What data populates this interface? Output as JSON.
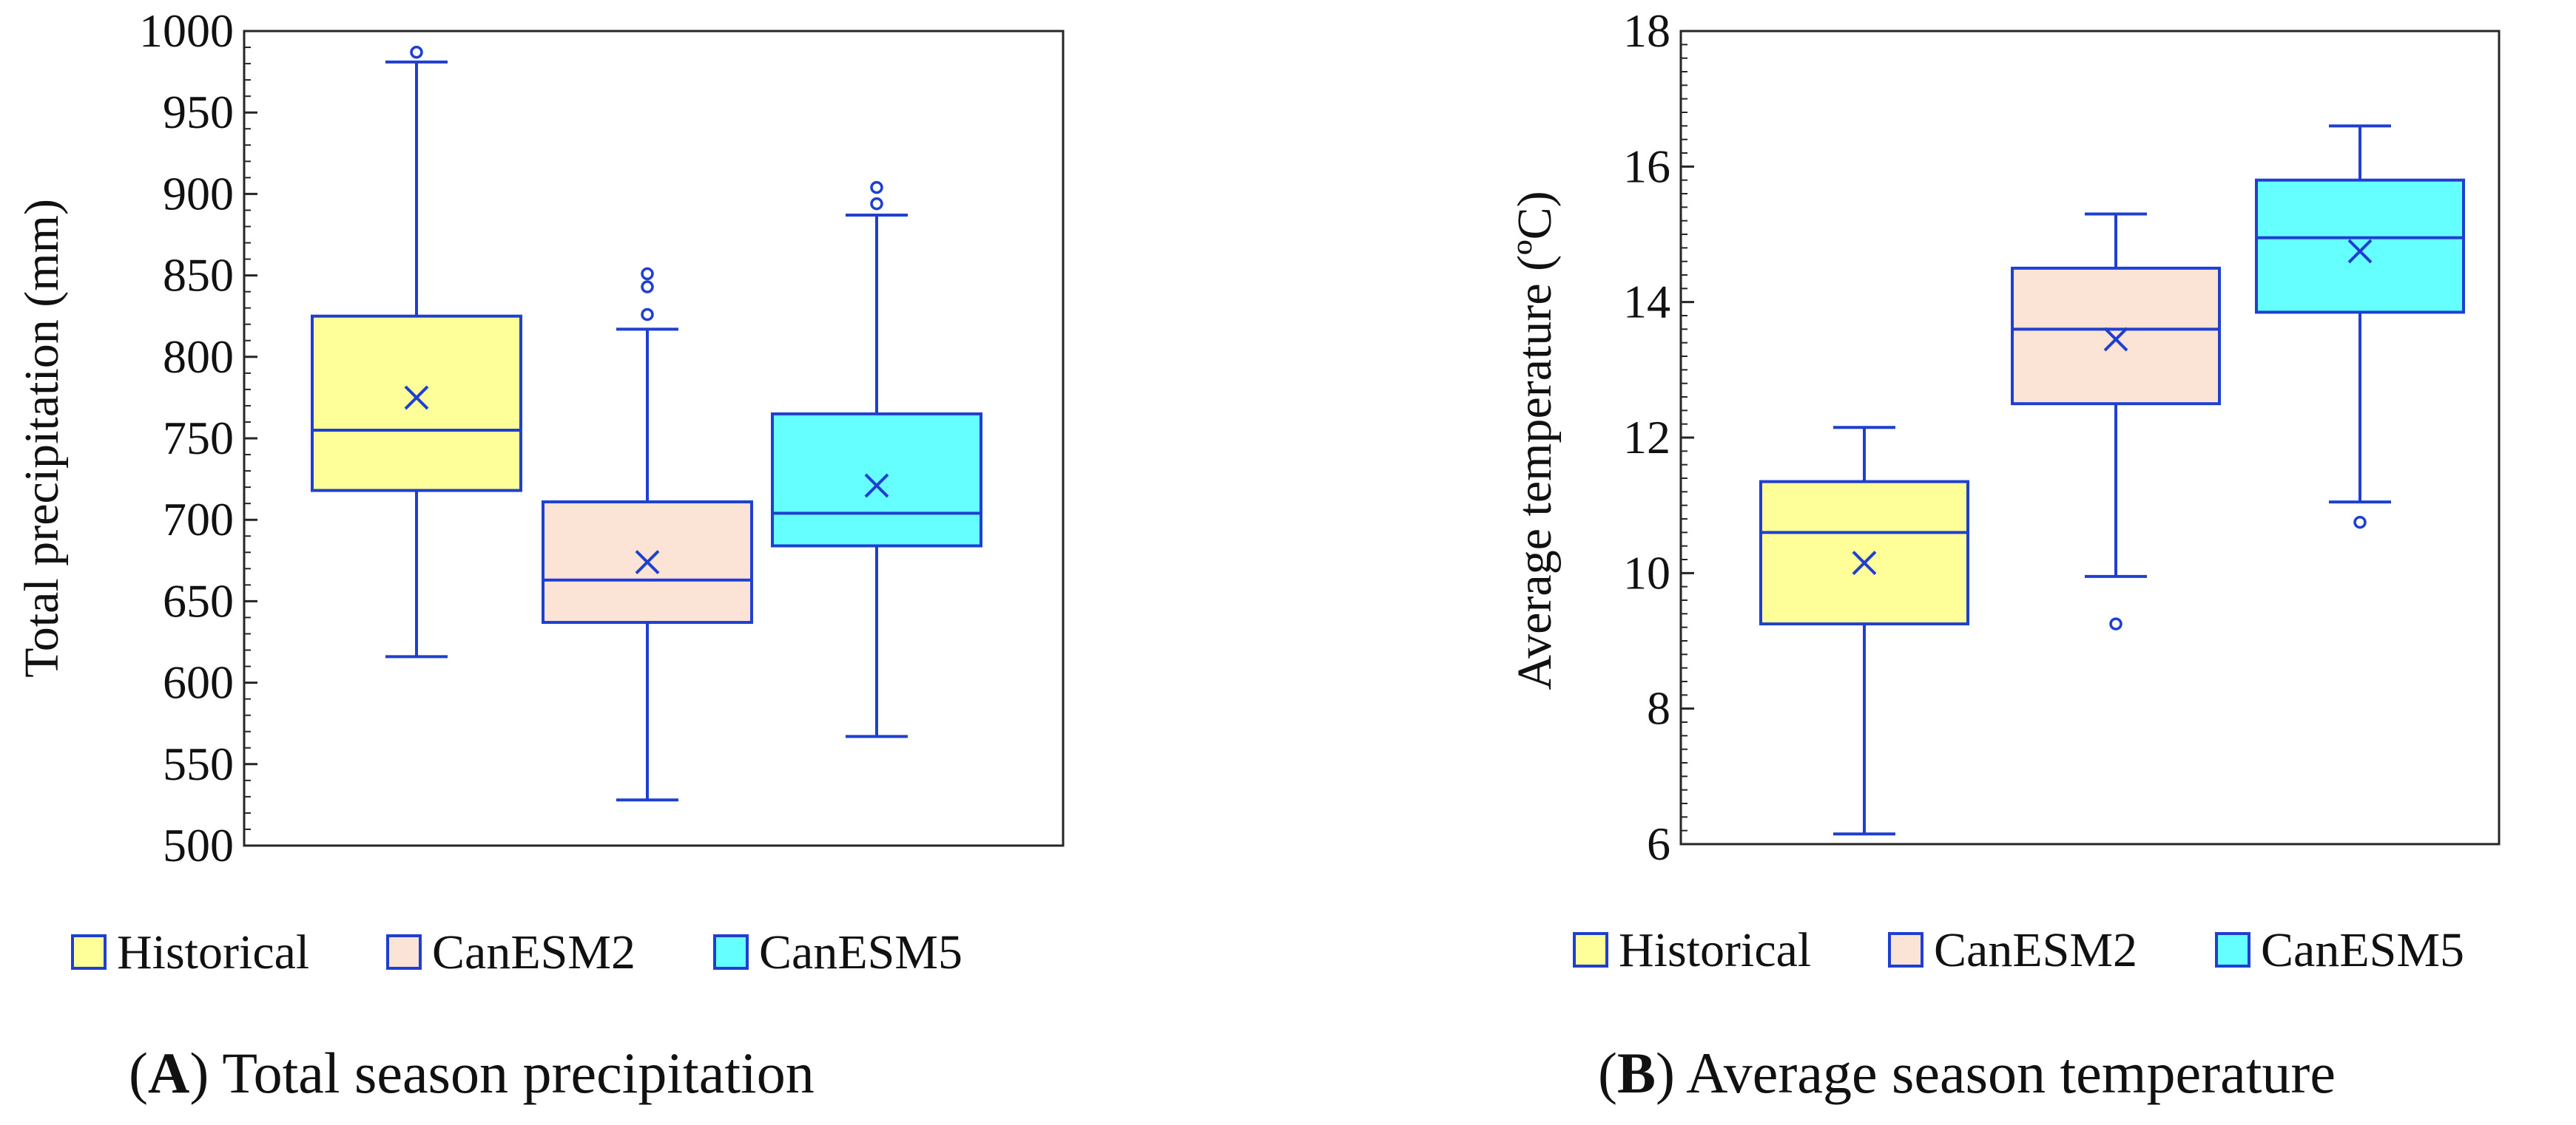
{
  "colors": {
    "box_stroke": "#1f3fd1",
    "frame": "#262626",
    "historical": "#ffff99",
    "canesm2": "#fbe3d6",
    "canesm5": "#66ffff"
  },
  "chart_data": [
    {
      "type": "box",
      "caption": {
        "letter": "A",
        "text": ") Total season precipitation"
      },
      "ylabel": "Total precipitation (mm)",
      "ylim": [
        500,
        1000
      ],
      "ticks": [
        "500",
        "550",
        "600",
        "650",
        "700",
        "750",
        "800",
        "850",
        "900",
        "950",
        "1000"
      ],
      "series": [
        {
          "name": "Historical",
          "min": 616,
          "q1": 718,
          "median": 755,
          "q3": 825,
          "max": 981,
          "mean": 775,
          "outliers": [
            987
          ]
        },
        {
          "name": "CanESM2",
          "min": 528,
          "q1": 637,
          "median": 663,
          "q3": 711,
          "max": 817,
          "mean": 674,
          "outliers": [
            826,
            843,
            851
          ]
        },
        {
          "name": "CanESM5",
          "min": 567,
          "q1": 684,
          "median": 704,
          "q3": 765,
          "max": 887,
          "mean": 721,
          "outliers": [
            894,
            904
          ]
        }
      ]
    },
    {
      "type": "box",
      "caption": {
        "letter": "B",
        "text": ") Average season temperature"
      },
      "ylabel": "Average temperature (ºC)",
      "ylim": [
        6,
        18
      ],
      "ticks": [
        "6",
        "8",
        "10",
        "12",
        "14",
        "16",
        "18"
      ],
      "series": [
        {
          "name": "Historical",
          "min": 6.15,
          "q1": 9.25,
          "median": 10.6,
          "q3": 11.35,
          "max": 12.15,
          "mean": 10.15,
          "outliers": []
        },
        {
          "name": "CanESM2",
          "min": 9.95,
          "q1": 12.5,
          "median": 13.6,
          "q3": 14.5,
          "max": 15.3,
          "mean": 13.45,
          "outliers": [
            9.25
          ]
        },
        {
          "name": "CanESM5",
          "min": 11.05,
          "q1": 13.85,
          "median": 14.95,
          "q3": 15.8,
          "max": 16.6,
          "mean": 14.75,
          "outliers": [
            10.75
          ]
        }
      ]
    }
  ],
  "legend": [
    "Historical",
    "CanESM2",
    "CanESM5"
  ]
}
